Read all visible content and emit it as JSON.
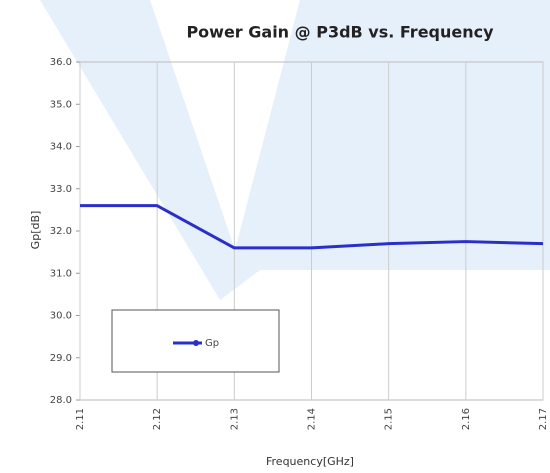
{
  "chart_data": {
    "type": "line",
    "title": "Power Gain @ P3dB vs. Frequency",
    "x_label": "Frequency[GHz]",
    "y_label": "Gp[dB]",
    "categories": [
      "2.11",
      "2.12",
      "2.13",
      "2.14",
      "2.15",
      "2.16",
      "2.17"
    ],
    "series": [
      {
        "name": "Gp",
        "color": "#2a2fc9",
        "values": [
          32.6,
          32.6,
          31.6,
          31.6,
          31.7,
          31.75,
          31.7
        ]
      }
    ],
    "ylim": [
      28,
      36
    ],
    "yticks": [
      {
        "value": 28,
        "label": "28.0"
      },
      {
        "value": 29,
        "label": "29.0"
      },
      {
        "value": 30,
        "label": "30.0"
      },
      {
        "value": 31,
        "label": "31.0"
      },
      {
        "value": 32,
        "label": "32.0"
      },
      {
        "value": 33,
        "label": "33.0"
      },
      {
        "value": 34,
        "label": "34.0"
      },
      {
        "value": 35,
        "label": "35.0"
      },
      {
        "value": 36,
        "label": "36.0"
      }
    ],
    "grid": true,
    "legend": "lower left"
  }
}
